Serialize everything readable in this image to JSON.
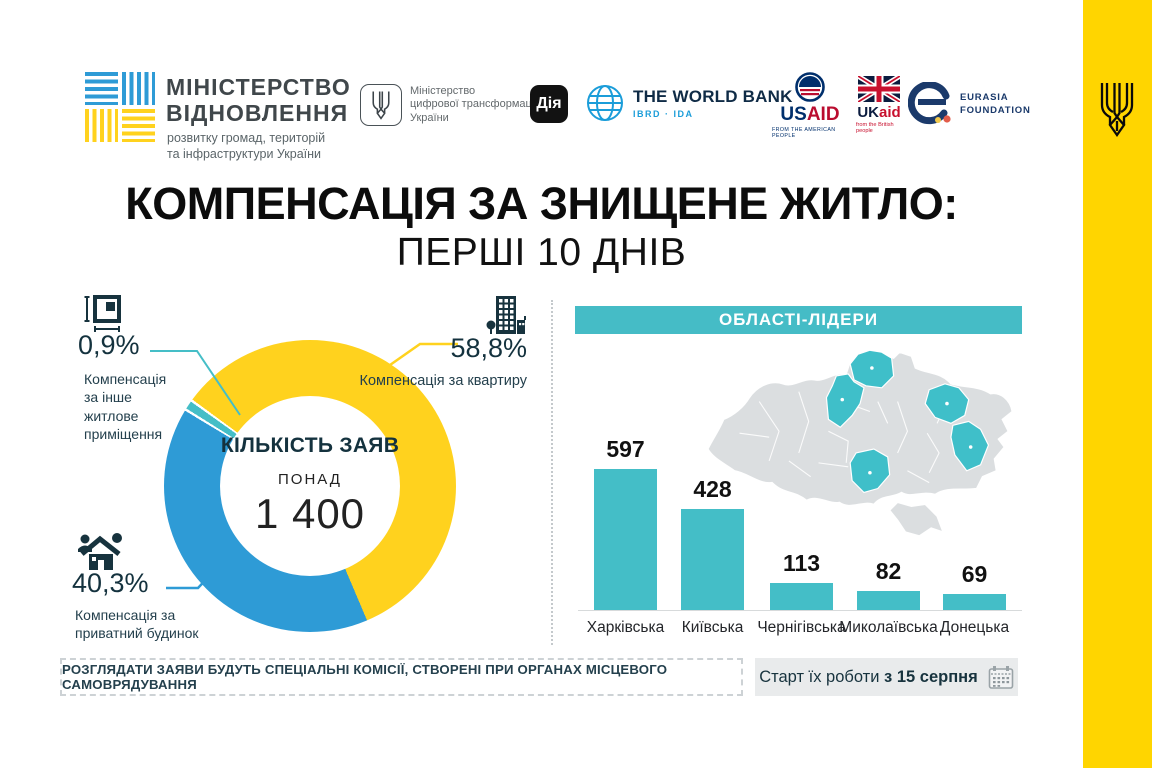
{
  "colors": {
    "yellow": "#FFD21E",
    "blue": "#2E9BD6",
    "teal": "#45BEC7",
    "banner": "#45BCC6",
    "stripe": "#FFD500",
    "dark": "#17333E",
    "mapgray": "#DBDEE0",
    "boxgray": "#E9EBEC"
  },
  "header": {
    "ministry": {
      "line1": "МІНІСТЕРСТВО",
      "line2": "ВІДНОВЛЕННЯ",
      "sub1": "розвитку громад, територій",
      "sub2": "та інфраструктури України"
    },
    "partners": {
      "digital": {
        "line1": "Міністерство",
        "line2": "цифрової трансформації",
        "line3": "України"
      },
      "diia": "Дія",
      "worldbank": {
        "name": "THE WORLD BANK",
        "sub": "IBRD · IDA"
      },
      "usaid": {
        "us": "US",
        "aid": "AID",
        "sub": "FROM THE AMERICAN PEOPLE"
      },
      "ukaid": {
        "uk": "UK",
        "aid": "aid",
        "sub": "from the British people"
      },
      "eurasia": {
        "line1": "EURASIA",
        "line2": "FOUNDATION"
      }
    }
  },
  "title": {
    "line1": "КОМПЕНСАЦІЯ ЗА ЗНИЩЕНЕ ЖИТЛО:",
    "line2": "ПЕРШІ 10 ДНІВ"
  },
  "donut": {
    "center_title": "КІЛЬКІСТЬ ЗАЯВ",
    "center_pre": "ПОНАД",
    "center_value": "1 400",
    "callouts": {
      "other": {
        "pct": "0,9%",
        "desc": "Компенсація за інше житлове приміщення"
      },
      "apartment": {
        "pct": "58,8%",
        "desc": "Компенсація за квартиру"
      },
      "house": {
        "pct": "40,3%",
        "desc": "Компенсація за приватний будинок"
      }
    }
  },
  "regions": {
    "banner": "ОБЛАСТІ-ЛІДЕРИ"
  },
  "footer": {
    "notice": "РОЗГЛЯДАТИ ЗАЯВИ БУДУТЬ СПЕЦІАЛЬНІ КОМІСІЇ, СТВОРЕНІ ПРИ ОРГАНАХ МІСЦЕВОГО САМОВРЯДУВАННЯ",
    "start_prefix": "Старт їх роботи",
    "start_date": "з 15 серпня"
  },
  "chart_data": [
    {
      "type": "pie",
      "donut": true,
      "title": "КІЛЬКІСТЬ ЗАЯВ — ПОНАД 1 400",
      "labels": [
        "Компенсація за квартиру",
        "Компенсація за приватний будинок",
        "Компенсація за інше житлове приміщення"
      ],
      "values": [
        58.8,
        40.3,
        0.9
      ],
      "unit": "%",
      "colors": [
        "#FFD21E",
        "#2E9BD6",
        "#45BEC7"
      ]
    },
    {
      "type": "bar",
      "title": "ОБЛАСТІ-ЛІДЕРИ",
      "categories": [
        "Харківська",
        "Київська",
        "Чернігівська",
        "Миколаївська",
        "Донецька"
      ],
      "values": [
        597,
        428,
        113,
        82,
        69
      ],
      "ylim": [
        0,
        640
      ],
      "color": "#44BEC7",
      "legend": "none",
      "grid": false
    }
  ]
}
